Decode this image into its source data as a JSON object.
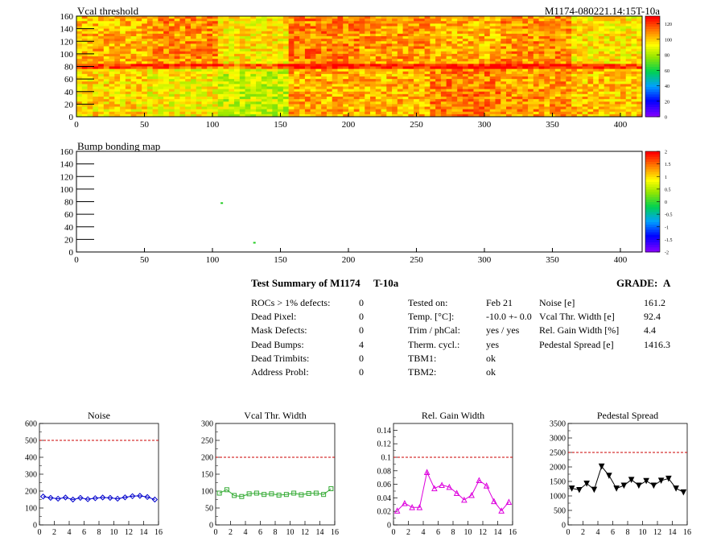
{
  "header": {
    "left_title": "Vcal threshold",
    "right_title": "M1174-080221.14:15T-10a"
  },
  "maps": [
    {
      "title": "Vcal threshold",
      "x_ticks": [
        "0",
        "50",
        "100",
        "150",
        "200",
        "250",
        "300",
        "350",
        "400"
      ],
      "y_ticks": [
        "0",
        "20",
        "40",
        "60",
        "80",
        "100",
        "120",
        "140",
        "160"
      ],
      "palette_ticks": [
        "0",
        "20",
        "40",
        "60",
        "80",
        "100",
        "120"
      ],
      "xlim": [
        0,
        416
      ],
      "ylim": [
        0,
        160
      ],
      "roc_means_top": [
        104,
        110,
        96,
        112,
        108,
        104,
        110,
        96
      ],
      "roc_means_bottom": [
        98,
        94,
        86,
        106,
        104,
        112,
        108,
        102
      ],
      "colors": {
        "low": "#8000ff",
        "mid": "#00d040",
        "high": "#ff0000"
      }
    },
    {
      "title": "Bump bonding map",
      "x_ticks": [
        "0",
        "50",
        "100",
        "150",
        "200",
        "250",
        "300",
        "350",
        "400"
      ],
      "y_ticks": [
        "0",
        "20",
        "40",
        "60",
        "80",
        "100",
        "120",
        "140",
        "160"
      ],
      "palette_ticks": [
        "-2",
        "-1.5",
        "-1",
        "-0.5",
        "0",
        "0.5",
        "1",
        "1.5",
        "2"
      ],
      "xlim": [
        0,
        416
      ],
      "ylim": [
        0,
        160
      ],
      "points": [
        [
          106,
          79
        ],
        [
          130,
          16
        ]
      ]
    }
  ],
  "summary": {
    "title": "Test Summary of M1174",
    "temp_tag": "T-10a",
    "grade_label": "GRADE:",
    "grade_value": "A",
    "defects": [
      {
        "label": "ROCs > 1% defects:",
        "value": "0"
      },
      {
        "label": "Dead Pixel:",
        "value": "0"
      },
      {
        "label": "Mask Defects:",
        "value": "0"
      },
      {
        "label": "Dead Bumps:",
        "value": "4"
      },
      {
        "label": "Dead Trimbits:",
        "value": "0"
      },
      {
        "label": "Address Probl:",
        "value": "0"
      }
    ],
    "conditions": [
      {
        "label": "Tested on:",
        "value": "Feb 21"
      },
      {
        "label": "Temp. [°C]:",
        "value": "-10.0 +- 0.0"
      },
      {
        "label": "Trim / phCal:",
        "value": "yes / yes"
      },
      {
        "label": "Therm. cycl.:",
        "value": "yes"
      },
      {
        "label": "TBM1:",
        "value": "ok"
      },
      {
        "label": "TBM2:",
        "value": "ok"
      }
    ],
    "results": [
      {
        "label": "Noise [e]",
        "value": "161.2"
      },
      {
        "label": "Vcal Thr. Width [e]",
        "value": "92.4"
      },
      {
        "label": "Rel. Gain Width [%]",
        "value": "4.4"
      },
      {
        "label": "Pedestal Spread [e]",
        "value": "1416.3"
      }
    ]
  },
  "chart_data": [
    {
      "type": "line",
      "title": "Noise",
      "x": [
        0.5,
        1.5,
        2.5,
        3.5,
        4.5,
        5.5,
        6.5,
        7.5,
        8.5,
        9.5,
        10.5,
        11.5,
        12.5,
        13.5,
        14.5,
        15.5
      ],
      "values": [
        168,
        160,
        155,
        162,
        150,
        160,
        152,
        158,
        162,
        160,
        155,
        163,
        170,
        172,
        165,
        150
      ],
      "ylim": [
        0,
        600
      ],
      "xlim": [
        0,
        16
      ],
      "y_ticks": [
        0,
        100,
        200,
        300,
        400,
        500,
        600
      ],
      "x_ticks": [
        0,
        2,
        4,
        6,
        8,
        10,
        12,
        14,
        16
      ],
      "threshold": 500,
      "marker": "diamond",
      "color": "#0000cc",
      "threshold_color": "#cc0000"
    },
    {
      "type": "line",
      "title": "Vcal Thr. Width",
      "x": [
        0.5,
        1.5,
        2.5,
        3.5,
        4.5,
        5.5,
        6.5,
        7.5,
        8.5,
        9.5,
        10.5,
        11.5,
        12.5,
        13.5,
        14.5,
        15.5
      ],
      "values": [
        94,
        104,
        87,
        84,
        92,
        94,
        90,
        92,
        88,
        90,
        94,
        89,
        93,
        94,
        90,
        107
      ],
      "ylim": [
        0,
        300
      ],
      "xlim": [
        0,
        16
      ],
      "y_ticks": [
        0,
        50,
        100,
        150,
        200,
        250,
        300
      ],
      "x_ticks": [
        0,
        2,
        4,
        6,
        8,
        10,
        12,
        14,
        16
      ],
      "threshold": 200,
      "marker": "square",
      "color": "#33aa33",
      "threshold_color": "#cc0000"
    },
    {
      "type": "line",
      "title": "Rel. Gain Width",
      "x": [
        0.5,
        1.5,
        2.5,
        3.5,
        4.5,
        5.5,
        6.5,
        7.5,
        8.5,
        9.5,
        10.5,
        11.5,
        12.5,
        13.5,
        14.5,
        15.5
      ],
      "values": [
        0.021,
        0.032,
        0.026,
        0.026,
        0.078,
        0.054,
        0.059,
        0.056,
        0.047,
        0.037,
        0.044,
        0.066,
        0.058,
        0.035,
        0.021,
        0.034
      ],
      "ylim": [
        0,
        0.15
      ],
      "xlim": [
        0,
        16
      ],
      "y_ticks": [
        0,
        0.02,
        0.04,
        0.06,
        0.08,
        0.1,
        0.12,
        0.14
      ],
      "x_ticks": [
        0,
        2,
        4,
        6,
        8,
        10,
        12,
        14,
        16
      ],
      "threshold": 0.1,
      "marker": "triangle",
      "color": "#dd00dd",
      "threshold_color": "#cc0000"
    },
    {
      "type": "line",
      "title": "Pedestal Spread",
      "x": [
        0.5,
        1.5,
        2.5,
        3.5,
        4.5,
        5.5,
        6.5,
        7.5,
        8.5,
        9.5,
        10.5,
        11.5,
        12.5,
        13.5,
        14.5,
        15.5
      ],
      "values": [
        1260,
        1210,
        1430,
        1220,
        2020,
        1700,
        1260,
        1360,
        1560,
        1360,
        1520,
        1360,
        1530,
        1600,
        1260,
        1130
      ],
      "ylim": [
        0,
        3500
      ],
      "xlim": [
        0,
        16
      ],
      "y_ticks": [
        0,
        500,
        1000,
        1500,
        2000,
        2500,
        3000,
        3500
      ],
      "x_ticks": [
        0,
        2,
        4,
        6,
        8,
        10,
        12,
        14,
        16
      ],
      "threshold": 2500,
      "marker": "triangle-down",
      "color": "#000000",
      "threshold_color": "#cc0000"
    }
  ]
}
